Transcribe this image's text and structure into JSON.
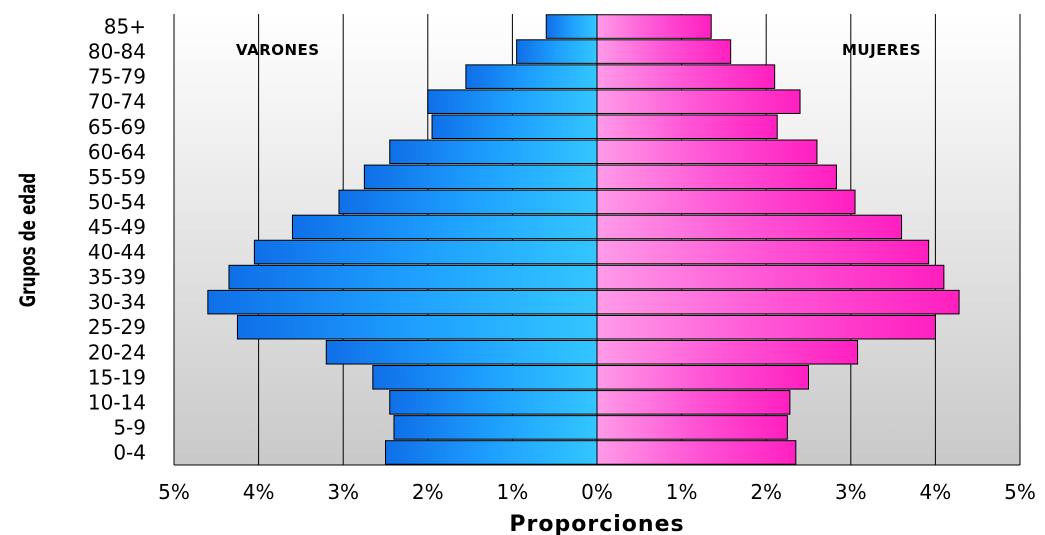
{
  "chart_data": {
    "type": "bar",
    "orientation": "horizontal",
    "variant": "population-pyramid",
    "categories": [
      "0-4",
      "5-9",
      "10-14",
      "15-19",
      "20-24",
      "25-29",
      "30-34",
      "35-39",
      "40-44",
      "45-49",
      "50-54",
      "55-59",
      "60-64",
      "65-69",
      "70-74",
      "75-79",
      "80-84",
      "85+"
    ],
    "series": [
      {
        "name": "VARONES",
        "side": "left",
        "color": "#1e9bff",
        "values": [
          2.5,
          2.4,
          2.45,
          2.65,
          3.2,
          4.25,
          4.6,
          4.35,
          4.05,
          3.6,
          3.05,
          2.75,
          2.45,
          1.95,
          2.0,
          1.55,
          0.95,
          0.6
        ]
      },
      {
        "name": "MUJERES",
        "side": "right",
        "color": "#ff33cc",
        "values": [
          2.35,
          2.25,
          2.28,
          2.5,
          3.08,
          4.0,
          4.28,
          4.1,
          3.92,
          3.6,
          3.05,
          2.83,
          2.6,
          2.13,
          2.4,
          2.1,
          1.58,
          1.35
        ]
      }
    ],
    "xticks": [
      "5%",
      "4%",
      "3%",
      "2%",
      "1%",
      "0%",
      "1%",
      "2%",
      "3%",
      "4%",
      "5%"
    ],
    "xlim": [
      -5,
      5
    ],
    "xlabel": "Proporciones",
    "ylabel": "Grupos de edad",
    "annotations": [
      "VARONES",
      "MUJERES"
    ],
    "grid": "vertical",
    "legend": "none"
  }
}
